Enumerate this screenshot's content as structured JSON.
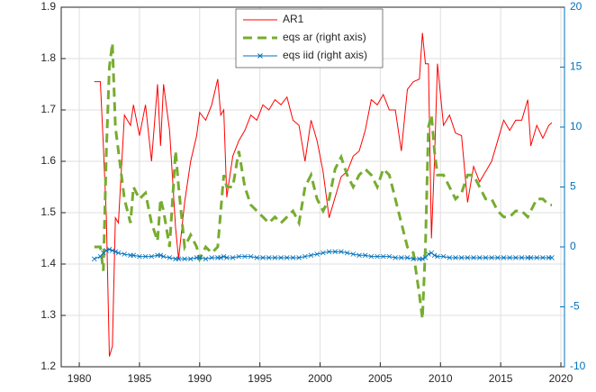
{
  "chart_data": {
    "type": "line",
    "x": [
      1981.25,
      1981.75,
      1982,
      1982.25,
      1982.5,
      1982.75,
      1983,
      1983.25,
      1983.75,
      1984.25,
      1984.5,
      1985,
      1985.5,
      1986,
      1986.5,
      1986.75,
      1987,
      1987.5,
      1988,
      1988.25,
      1988.75,
      1989.25,
      1989.75,
      1990,
      1990.5,
      1991,
      1991.5,
      1991.75,
      1992,
      1992.25,
      1992.75,
      1993.25,
      1993.75,
      1994.25,
      1994.75,
      1995.25,
      1995.75,
      1996.25,
      1996.75,
      1997.25,
      1997.75,
      1998.25,
      1998.75,
      1999.25,
      1999.75,
      2000.25,
      2000.75,
      2001.25,
      2001.75,
      2002.25,
      2002.75,
      2003.25,
      2003.75,
      2004.25,
      2004.75,
      2005.25,
      2005.75,
      2006.25,
      2006.75,
      2007.25,
      2007.75,
      2008.25,
      2008.5,
      2008.75,
      2009,
      2009.25,
      2009.5,
      2009.75,
      2010.25,
      2010.75,
      2011.25,
      2011.75,
      2012.25,
      2012.75,
      2013.25,
      2013.75,
      2014.25,
      2014.75,
      2015.25,
      2015.75,
      2016.25,
      2016.75,
      2017.25,
      2017.5,
      2018,
      2018.5,
      2019,
      2019.25
    ],
    "series": [
      {
        "name": "AR1",
        "color": "#ff0000",
        "style": "solid",
        "values": [
          1.755,
          1.755,
          1.63,
          1.49,
          1.22,
          1.24,
          1.49,
          1.48,
          1.69,
          1.67,
          1.71,
          1.65,
          1.71,
          1.6,
          1.75,
          1.63,
          1.75,
          1.66,
          1.47,
          1.41,
          1.52,
          1.6,
          1.65,
          1.695,
          1.68,
          1.71,
          1.76,
          1.69,
          1.7,
          1.53,
          1.61,
          1.64,
          1.66,
          1.69,
          1.68,
          1.71,
          1.7,
          1.72,
          1.71,
          1.725,
          1.68,
          1.67,
          1.6,
          1.68,
          1.64,
          1.58,
          1.49,
          1.53,
          1.57,
          1.58,
          1.61,
          1.62,
          1.66,
          1.72,
          1.71,
          1.73,
          1.7,
          1.7,
          1.62,
          1.74,
          1.755,
          1.76,
          1.85,
          1.79,
          1.79,
          1.45,
          1.6,
          1.79,
          1.67,
          1.69,
          1.655,
          1.65,
          1.52,
          1.59,
          1.56,
          1.58,
          1.6,
          1.64,
          1.68,
          1.66,
          1.68,
          1.68,
          1.72,
          1.63,
          1.67,
          1.645,
          1.67,
          1.675
        ]
      },
      {
        "name": "eqs ar (right axis)",
        "color": "#77ac30",
        "style": "dashed",
        "axis": "y2",
        "values": [
          0,
          0,
          -2,
          8,
          15,
          17,
          10,
          8,
          4,
          2,
          5,
          4,
          4.5,
          2,
          0.5,
          4,
          3,
          0,
          8,
          5,
          0,
          1,
          0,
          -1,
          0,
          -0.5,
          0,
          3,
          6,
          5,
          5,
          8,
          5,
          3.5,
          3,
          2.5,
          2,
          2.5,
          2,
          2.5,
          3,
          2,
          5,
          6,
          4,
          3,
          4,
          6.5,
          7.5,
          6,
          5,
          6,
          6.5,
          6,
          5,
          6.5,
          6,
          4,
          2,
          0,
          -0.5,
          -4,
          -6,
          0,
          10,
          11,
          8,
          6,
          6,
          5,
          4,
          4.5,
          6,
          6,
          5,
          4,
          4,
          3,
          2.5,
          2.5,
          3,
          3,
          2.5,
          3,
          4,
          4,
          3.5,
          3.5
        ]
      },
      {
        "name": "eqs iid (right axis)",
        "color": "#0072bd",
        "style": "solid",
        "marker": "x",
        "axis": "y2",
        "values": [
          -1,
          -0.8,
          -0.5,
          -0.3,
          -0.2,
          -0.3,
          -0.4,
          -0.5,
          -0.6,
          -0.7,
          -0.7,
          -0.8,
          -0.8,
          -0.8,
          -0.7,
          -0.7,
          -0.8,
          -0.9,
          -1,
          -1,
          -1,
          -1,
          -0.9,
          -0.9,
          -1,
          -0.9,
          -0.9,
          -0.9,
          -0.8,
          -0.9,
          -0.9,
          -0.8,
          -0.8,
          -0.8,
          -0.9,
          -0.9,
          -0.9,
          -0.9,
          -0.9,
          -0.9,
          -0.9,
          -0.9,
          -0.8,
          -0.7,
          -0.6,
          -0.5,
          -0.4,
          -0.4,
          -0.4,
          -0.5,
          -0.6,
          -0.7,
          -0.7,
          -0.8,
          -0.8,
          -0.8,
          -0.8,
          -0.9,
          -0.9,
          -0.9,
          -1,
          -1,
          -1,
          -0.9,
          -0.6,
          -0.5,
          -0.7,
          -0.8,
          -0.8,
          -0.9,
          -0.9,
          -0.9,
          -0.9,
          -0.9,
          -0.9,
          -0.9,
          -0.9,
          -0.9,
          -0.9,
          -0.9,
          -0.9,
          -0.9,
          -0.9,
          -0.9,
          -0.9,
          -0.9,
          -0.9,
          -0.9
        ]
      }
    ],
    "xlim": [
      1978.5,
      2020.3
    ],
    "xticks": [
      1980,
      1985,
      1990,
      1995,
      2000,
      2005,
      2010,
      2015,
      2020
    ],
    "ylim": [
      1.2,
      1.9
    ],
    "yticks": [
      1.2,
      1.3,
      1.4,
      1.5,
      1.6,
      1.7,
      1.8,
      1.9
    ],
    "y2lim": [
      -10,
      20
    ],
    "y2ticks": [
      -10,
      -5,
      0,
      5,
      10,
      15,
      20
    ],
    "y2color": "#0072bd",
    "grid": true,
    "legend": "upper center"
  }
}
